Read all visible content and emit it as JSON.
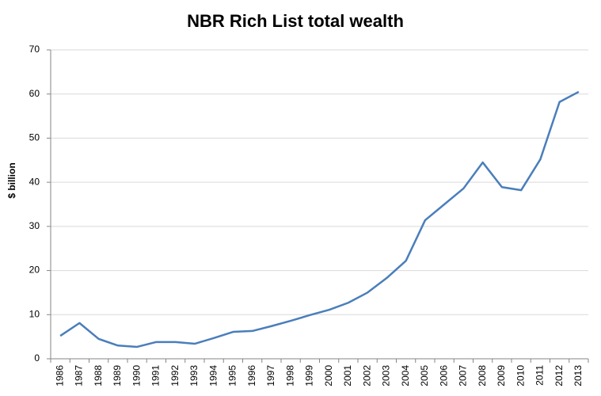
{
  "chart_data": {
    "type": "line",
    "title": "NBR Rich List total wealth",
    "y_label": "$ billion",
    "categories": [
      "1986",
      "1987",
      "1988",
      "1989",
      "1990",
      "1991",
      "1992",
      "1993",
      "1994",
      "1995",
      "1996",
      "1997",
      "1998",
      "1999",
      "2000",
      "2001",
      "2002",
      "2003",
      "2004",
      "2005",
      "2006",
      "2007",
      "2008",
      "2009",
      "2010",
      "2011",
      "2012",
      "2013"
    ],
    "series": [
      {
        "name": "Total wealth",
        "color": "#4a7ebb",
        "values": [
          5.2,
          8.1,
          4.5,
          3.0,
          2.7,
          3.8,
          3.8,
          3.4,
          4.7,
          6.1,
          6.3,
          7.4,
          8.6,
          9.9,
          11.1,
          12.7,
          15.0,
          18.3,
          22.2,
          31.4,
          35.0,
          38.6,
          44.5,
          38.9,
          38.2,
          45.2,
          58.2,
          60.5
        ]
      }
    ],
    "ylim": [
      0,
      70
    ],
    "yticks": [
      0,
      10,
      20,
      30,
      40,
      50,
      60,
      70
    ],
    "grid": true
  }
}
